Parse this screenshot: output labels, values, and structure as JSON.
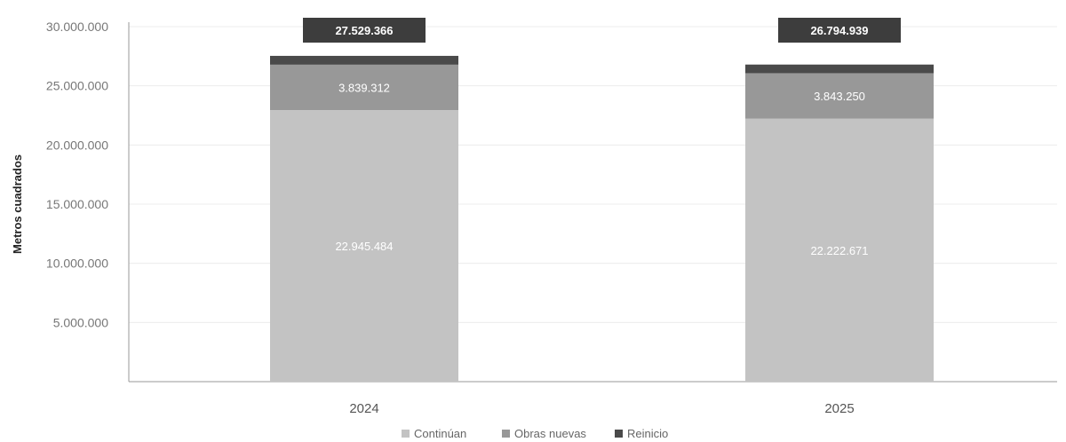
{
  "chart_data": {
    "type": "bar",
    "stacked": true,
    "categories": [
      "2024",
      "2025"
    ],
    "series": [
      {
        "name": "Continúan",
        "values": [
          22945484,
          22222671
        ],
        "labels": [
          "22.945.484",
          "22.222.671"
        ],
        "color": "#c3c3c3"
      },
      {
        "name": "Obras nuevas",
        "values": [
          3839312,
          3843250
        ],
        "labels": [
          "3.839.312",
          "3.843.250"
        ],
        "color": "#989898"
      },
      {
        "name": "Reinicio",
        "values": [
          744570,
          729018
        ],
        "color": "#4a4a4a"
      }
    ],
    "totals": [
      27529366,
      26794939
    ],
    "total_labels": [
      "27.529.366",
      "26.794.939"
    ],
    "total_label_color": "#3d3d3d",
    "ylabel": "Metros cuadrados",
    "xlabel": "",
    "ylim": [
      0,
      30000000
    ],
    "yticks": [
      5000000,
      10000000,
      15000000,
      20000000,
      25000000,
      30000000
    ],
    "ytick_labels": [
      "5.000.000",
      "10.000.000",
      "15.000.000",
      "20.000.000",
      "25.000.000",
      "30.000.000"
    ],
    "grid": true,
    "legend_position": "bottom"
  }
}
